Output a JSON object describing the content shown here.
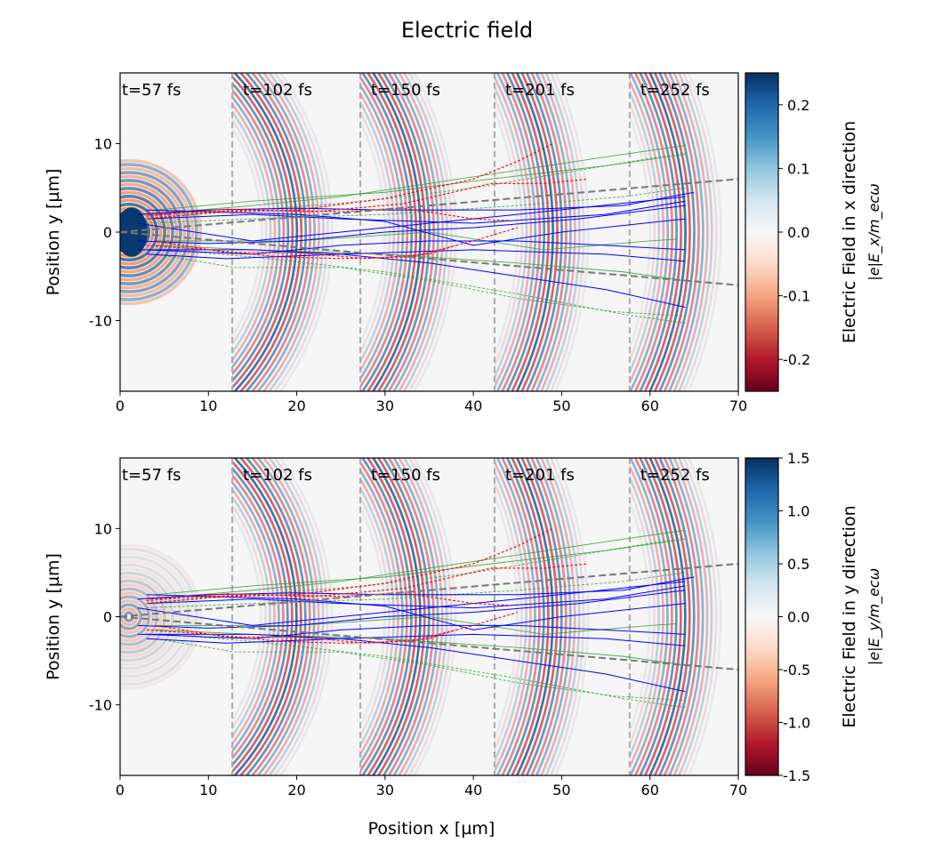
{
  "title": "Electric field",
  "colors": {
    "blue_traj": "#0000ff",
    "green_traj": "#2ca02c",
    "red_traj": "#ff0000",
    "guide": "#777777",
    "time_divider": "#aaaaaa"
  },
  "chart_data": [
    {
      "type": "heatmap",
      "panel": "top",
      "ylabel": "Position y [µm]",
      "xlim": [
        0,
        70
      ],
      "ylim": [
        -18,
        18
      ],
      "xticks": [
        "0",
        "10",
        "20",
        "30",
        "40",
        "50",
        "60",
        "70"
      ],
      "yticks": [
        {
          "v": 10,
          "label": "10"
        },
        {
          "v": 0,
          "label": "0"
        },
        {
          "v": -10,
          "label": "-10"
        }
      ],
      "colorbar": {
        "label": "Electric Field in x direction",
        "unit": "|e|E_x/m_ecω",
        "range": [
          -0.25,
          0.25
        ],
        "ticks": [
          {
            "v": 0.2,
            "label": "0.2"
          },
          {
            "v": 0.1,
            "label": "0.1"
          },
          {
            "v": 0,
            "label": "0.0"
          },
          {
            "v": -0.1,
            "label": "-0.1"
          },
          {
            "v": -0.2,
            "label": "-0.2"
          }
        ],
        "colormap": "RdBu"
      },
      "time_labels": [
        "t=57 fs",
        "t=102 fs",
        "t=150 fs",
        "t=201 fs",
        "t=252 fs"
      ],
      "time_dividers_x": [
        12.7,
        27.2,
        42.4,
        57.7
      ]
    },
    {
      "type": "heatmap",
      "panel": "bottom",
      "xlabel": "Position x [µm]",
      "ylabel": "Position y [µm]",
      "xlim": [
        0,
        70
      ],
      "ylim": [
        -18,
        18
      ],
      "xticks": [
        "0",
        "10",
        "20",
        "30",
        "40",
        "50",
        "60",
        "70"
      ],
      "yticks": [
        {
          "v": 10,
          "label": "10"
        },
        {
          "v": 0,
          "label": "0"
        },
        {
          "v": -10,
          "label": "-10"
        }
      ],
      "colorbar": {
        "label": "Electric Field in y direction",
        "unit": "|e|E_y/m_ecω",
        "range": [
          -1.5,
          1.5
        ],
        "ticks": [
          {
            "v": 1.5,
            "label": "1.5"
          },
          {
            "v": 1.0,
            "label": "1.0"
          },
          {
            "v": 0.5,
            "label": "0.5"
          },
          {
            "v": 0,
            "label": "0.0"
          },
          {
            "v": -0.5,
            "label": "-0.5"
          },
          {
            "v": -1.0,
            "label": "-1.0"
          },
          {
            "v": -1.5,
            "label": "-1.5"
          }
        ],
        "colormap": "RdBu"
      },
      "time_labels": [
        "t=57 fs",
        "t=102 fs",
        "t=150 fs",
        "t=201 fs",
        "t=252 fs"
      ],
      "time_dividers_x": [
        12.7,
        27.2,
        42.4,
        57.7
      ]
    }
  ],
  "overlay": {
    "guide_lines": [
      [
        [
          0,
          0
        ],
        [
          70,
          6
        ]
      ],
      [
        [
          0,
          0
        ],
        [
          70,
          -6
        ]
      ]
    ],
    "trajectories": {
      "blue": [
        [
          [
            2,
            2
          ],
          [
            10,
            2.5
          ],
          [
            20,
            2.7
          ],
          [
            30,
            2.5
          ],
          [
            45,
            2.5
          ],
          [
            57,
            3
          ],
          [
            65,
            4.5
          ]
        ],
        [
          [
            3,
            1.5
          ],
          [
            15,
            2
          ],
          [
            25,
            1.5
          ],
          [
            40,
            1
          ],
          [
            55,
            2
          ],
          [
            64,
            3.5
          ]
        ],
        [
          [
            2,
            -1
          ],
          [
            10,
            -1.3
          ],
          [
            20,
            -1
          ],
          [
            30,
            0
          ],
          [
            40,
            0.5
          ],
          [
            52,
            1.5
          ],
          [
            64,
            3
          ]
        ],
        [
          [
            3,
            -2
          ],
          [
            15,
            -2.5
          ],
          [
            25,
            -1.5
          ],
          [
            35,
            -1
          ],
          [
            45,
            -1
          ],
          [
            55,
            -1.5
          ],
          [
            64,
            -2
          ]
        ],
        [
          [
            3,
            -2.5
          ],
          [
            12,
            -3
          ],
          [
            25,
            -2.5
          ],
          [
            40,
            -2
          ],
          [
            55,
            -2.5
          ],
          [
            64,
            -3.3
          ]
        ],
        [
          [
            2,
            -2
          ],
          [
            15,
            -2
          ],
          [
            25,
            -2.5
          ],
          [
            35,
            -3.5
          ],
          [
            45,
            -5
          ],
          [
            55,
            -6.5
          ],
          [
            64,
            -8.5
          ]
        ],
        [
          [
            3,
            2.5
          ],
          [
            20,
            2
          ],
          [
            30,
            1.2
          ],
          [
            40,
            -1.5
          ],
          [
            50,
            0
          ],
          [
            64,
            1.5
          ]
        ],
        [
          [
            2,
            1
          ],
          [
            15,
            -1
          ],
          [
            30,
            0.5
          ],
          [
            45,
            2
          ],
          [
            64,
            4
          ]
        ]
      ],
      "green": [
        [
          [
            3,
            2
          ],
          [
            15,
            3
          ],
          [
            25,
            4
          ],
          [
            35,
            5.5
          ],
          [
            45,
            7
          ],
          [
            55,
            8.5
          ],
          [
            64,
            9.8
          ]
        ],
        [
          [
            3,
            1.5
          ],
          [
            15,
            2.5
          ],
          [
            28,
            3.5
          ],
          [
            40,
            5
          ],
          [
            52,
            7
          ],
          [
            64,
            9
          ]
        ],
        [
          [
            4,
            2.5
          ],
          [
            15,
            3.5
          ],
          [
            30,
            4.5
          ],
          [
            42,
            6
          ],
          [
            55,
            7.5
          ],
          [
            64,
            8.8
          ]
        ],
        [
          [
            3,
            1
          ],
          [
            15,
            1.5
          ],
          [
            30,
            2
          ],
          [
            45,
            3
          ],
          [
            57,
            4
          ],
          [
            64,
            5
          ]
        ],
        [
          [
            4,
            -1.5
          ],
          [
            15,
            -2
          ],
          [
            30,
            -2.5
          ],
          [
            45,
            -3.5
          ],
          [
            57,
            -4.5
          ],
          [
            64,
            -5.5
          ]
        ],
        [
          [
            4,
            -2.5
          ],
          [
            13,
            -4
          ],
          [
            25,
            -4
          ],
          [
            35,
            -5.5
          ],
          [
            45,
            -7.5
          ],
          [
            56,
            -9
          ],
          [
            64,
            -9.5
          ]
        ],
        [
          [
            4,
            -1
          ],
          [
            20,
            -1
          ],
          [
            35,
            0
          ],
          [
            48,
            -2
          ],
          [
            60,
            -1
          ],
          [
            63,
            -0.8
          ]
        ],
        [
          [
            5,
            -2
          ],
          [
            15,
            -2.8
          ],
          [
            30,
            -4.5
          ],
          [
            45,
            -7
          ],
          [
            57,
            -9.3
          ],
          [
            64,
            -10.3
          ]
        ]
      ],
      "red": [
        [
          [
            3,
            1.5
          ],
          [
            10,
            2.2
          ],
          [
            20,
            2.5
          ],
          [
            30,
            3.8
          ],
          [
            40,
            6
          ],
          [
            45,
            8
          ],
          [
            49,
            10
          ]
        ],
        [
          [
            3,
            1.8
          ],
          [
            12,
            2.6
          ],
          [
            22,
            2.3
          ],
          [
            32,
            3.2
          ],
          [
            42,
            5.5
          ],
          [
            48,
            5.5
          ],
          [
            53,
            6
          ]
        ],
        [
          [
            3,
            -1.5
          ],
          [
            10,
            -2
          ],
          [
            18,
            -2.8
          ],
          [
            25,
            -3
          ],
          [
            33,
            -2.8
          ],
          [
            40,
            -1
          ],
          [
            45,
            0.5
          ]
        ],
        [
          [
            4,
            -1
          ],
          [
            12,
            -2.3
          ],
          [
            20,
            -2.3
          ],
          [
            28,
            -3
          ],
          [
            35,
            -2.5
          ],
          [
            38,
            -1.5
          ]
        ],
        [
          [
            3,
            2
          ],
          [
            15,
            2.5
          ],
          [
            25,
            2.3
          ],
          [
            32,
            2.7
          ],
          [
            40,
            1.5
          ],
          [
            44,
            1.3
          ]
        ]
      ]
    }
  }
}
